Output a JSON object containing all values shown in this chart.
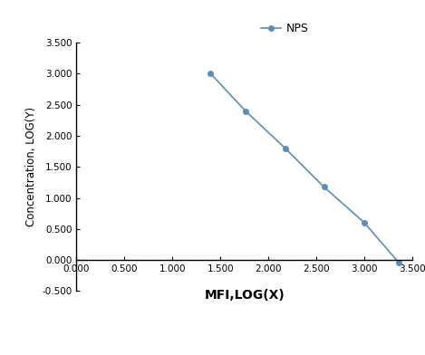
{
  "x": [
    1.398,
    1.763,
    2.176,
    2.58,
    3.0,
    3.362
  ],
  "y": [
    3.0,
    2.398,
    1.799,
    1.176,
    0.602,
    -0.046
  ],
  "line_color": "#5B8DB8",
  "marker": "o",
  "marker_size": 4,
  "label": "NPS",
  "xlabel": "MFI,LOG(X)",
  "ylabel": "Concentration, LOG(Y)",
  "xlim": [
    0.0,
    3.5
  ],
  "ylim": [
    -0.5,
    3.5
  ],
  "xticks": [
    0.0,
    0.5,
    1.0,
    1.5,
    2.0,
    2.5,
    3.0,
    3.5
  ],
  "yticks": [
    -0.5,
    0.0,
    0.5,
    1.0,
    1.5,
    2.0,
    2.5,
    3.0,
    3.5
  ],
  "xlabel_fontsize": 10,
  "ylabel_fontsize": 8.5,
  "tick_fontsize": 7.5,
  "legend_fontsize": 9,
  "background_color": "#ffffff"
}
